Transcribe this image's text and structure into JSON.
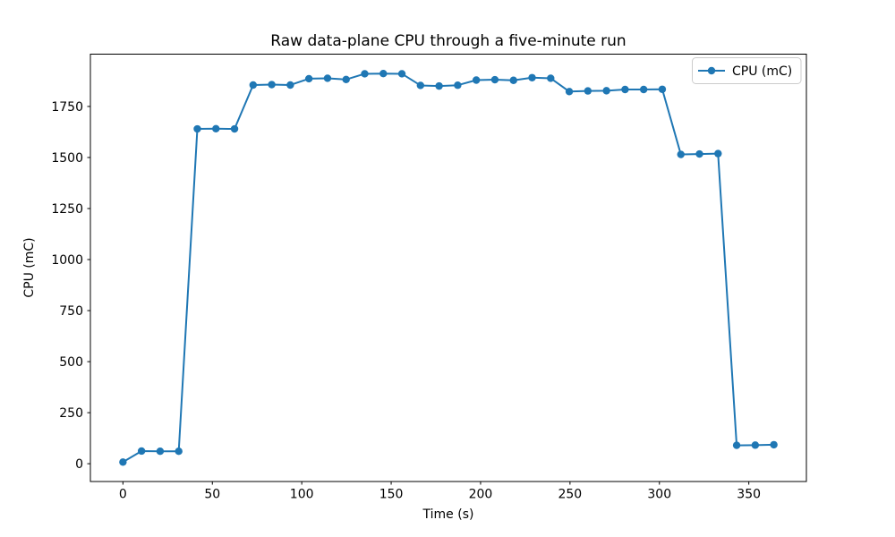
{
  "chart_data": {
    "type": "line",
    "title": "Raw data-plane CPU through a five-minute run",
    "xlabel": "Time (s)",
    "ylabel": "CPU (mC)",
    "legend_label": "CPU (mC)",
    "legend_position": "upper right",
    "grid": false,
    "marker": "o",
    "line_color": "#1f77b4",
    "x_ticks": [
      0,
      50,
      100,
      150,
      200,
      250,
      300,
      350
    ],
    "y_ticks": [
      0,
      250,
      500,
      750,
      1000,
      1250,
      1500,
      1750
    ],
    "xlim": [
      -18.2,
      382.2
    ],
    "ylim": [
      -87.2,
      2006.2
    ],
    "series": [
      {
        "name": "CPU (mC)",
        "x": [
          0,
          10.4,
          20.8,
          31.2,
          41.6,
          52,
          62.4,
          72.8,
          83.2,
          93.6,
          104,
          114.4,
          124.8,
          135.2,
          145.6,
          156,
          166.4,
          176.8,
          187.2,
          197.6,
          208,
          218.4,
          228.8,
          239.2,
          249.6,
          260,
          270.4,
          280.8,
          291.2,
          301.6,
          312,
          322.4,
          332.8,
          343.2,
          353.6,
          364
        ],
        "y": [
          8,
          62,
          61,
          61,
          1640,
          1641,
          1640,
          1855,
          1857,
          1855,
          1886,
          1888,
          1882,
          1910,
          1911,
          1910,
          1853,
          1850,
          1854,
          1879,
          1881,
          1878,
          1891,
          1888,
          1823,
          1826,
          1827,
          1833,
          1833,
          1834,
          1515,
          1517,
          1519,
          90,
          91,
          93
        ]
      }
    ]
  }
}
